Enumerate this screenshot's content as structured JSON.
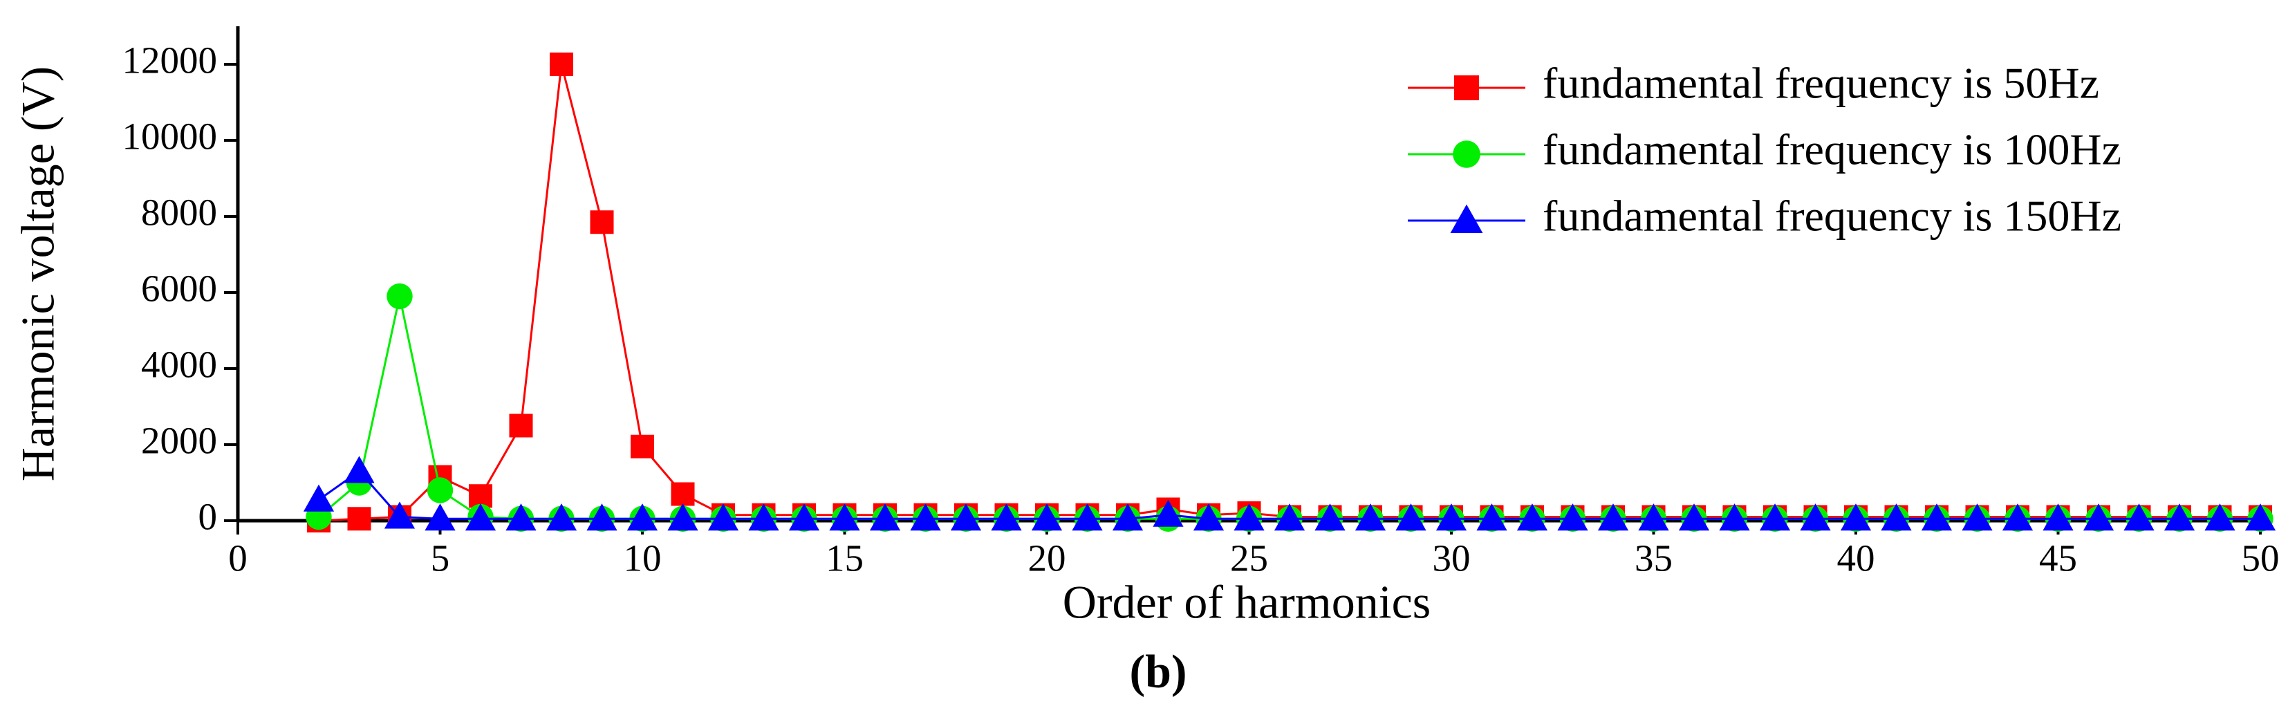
{
  "chart_data": {
    "type": "line",
    "subtitle": "(b)",
    "x_label": "Order of harmonics",
    "y_label": "Harmonic voltage (V)",
    "x": [
      2,
      3,
      4,
      5,
      6,
      7,
      8,
      9,
      10,
      11,
      12,
      13,
      14,
      15,
      16,
      17,
      18,
      19,
      20,
      21,
      22,
      23,
      24,
      25,
      26,
      27,
      28,
      29,
      30,
      31,
      32,
      33,
      34,
      35,
      36,
      37,
      38,
      39,
      40,
      41,
      42,
      43,
      44,
      45,
      46,
      47,
      48,
      49,
      50
    ],
    "series": [
      {
        "name": "fundamental frequency is 50Hz",
        "color": "#ff0000",
        "marker": "square",
        "values": [
          0,
          50,
          100,
          1150,
          650,
          2500,
          12000,
          7850,
          1950,
          700,
          150,
          150,
          150,
          150,
          150,
          150,
          150,
          150,
          150,
          150,
          150,
          300,
          150,
          200,
          100,
          100,
          100,
          100,
          100,
          100,
          100,
          100,
          100,
          100,
          100,
          100,
          100,
          100,
          100,
          100,
          100,
          100,
          100,
          100,
          100,
          100,
          100,
          100,
          100
        ]
      },
      {
        "name": "fundamental frequency is 100Hz",
        "color": "#00ee00",
        "marker": "circle",
        "values": [
          100,
          1000,
          5900,
          800,
          100,
          50,
          50,
          50,
          50,
          50,
          50,
          50,
          50,
          50,
          50,
          50,
          50,
          50,
          50,
          50,
          50,
          50,
          50,
          50,
          50,
          50,
          50,
          50,
          50,
          50,
          50,
          50,
          50,
          50,
          50,
          50,
          50,
          50,
          50,
          50,
          50,
          50,
          50,
          50,
          50,
          50,
          50,
          50,
          50
        ]
      },
      {
        "name": "fundamental frequency is 150Hz",
        "color": "#0000ff",
        "marker": "triangle",
        "values": [
          550,
          1300,
          100,
          50,
          50,
          50,
          50,
          50,
          50,
          50,
          50,
          50,
          50,
          50,
          50,
          50,
          50,
          50,
          50,
          50,
          50,
          150,
          50,
          50,
          50,
          50,
          50,
          50,
          50,
          50,
          50,
          50,
          50,
          50,
          50,
          50,
          50,
          50,
          50,
          50,
          50,
          50,
          50,
          50,
          50,
          50,
          50,
          50,
          50
        ]
      }
    ],
    "xlim": [
      0,
      50
    ],
    "xticks": [
      0,
      5,
      10,
      15,
      20,
      25,
      30,
      35,
      40,
      45,
      50
    ],
    "ylim": [
      0,
      13000
    ],
    "yticks": [
      0,
      2000,
      4000,
      6000,
      8000,
      10000,
      12000
    ],
    "grid": false,
    "legend": "top-right"
  }
}
